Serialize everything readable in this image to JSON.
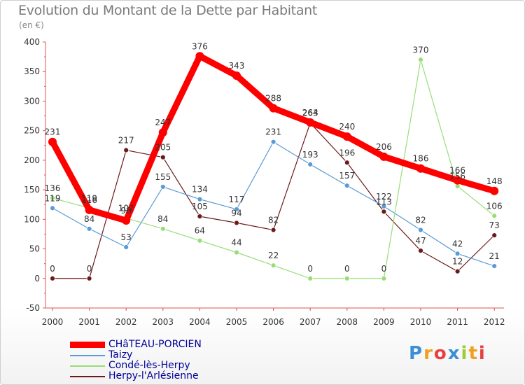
{
  "chart_data": {
    "type": "line",
    "title": "Evolution du Montant de la Dette par Habitant",
    "subtitle": "(en €)",
    "x": [
      "2000",
      "2001",
      "2002",
      "2003",
      "2004",
      "2005",
      "2006",
      "2007",
      "2008",
      "2009",
      "2010",
      "2011",
      "2012"
    ],
    "ylim": [
      -50,
      400
    ],
    "yticks": [
      -50,
      0,
      50,
      100,
      150,
      200,
      250,
      300,
      350,
      400
    ],
    "grid": false,
    "legend_position": "bottom-left",
    "series": [
      {
        "name": "Herpy-l'Arlésienne",
        "color": "#6b1a1a",
        "width": 1.2,
        "values": [
          0,
          0,
          217,
          205,
          105,
          94,
          82,
          263,
          196,
          113,
          47,
          12,
          73
        ]
      },
      {
        "name": "Taizy",
        "color": "#5b9bd5",
        "width": 1.2,
        "values": [
          119,
          84,
          53,
          155,
          134,
          117,
          231,
          193,
          157,
          122,
          82,
          42,
          21
        ]
      },
      {
        "name": "Condé-lès-Herpy",
        "color": "#99dd77",
        "width": 1.2,
        "values": [
          136,
          119,
          102,
          84,
          64,
          44,
          22,
          0,
          0,
          0,
          370,
          156,
          106
        ]
      },
      {
        "name": "CHâTEAU-PORCIEN",
        "color": "#ff0000",
        "width": 9,
        "values": [
          231,
          116,
          98,
          247,
          376,
          343,
          288,
          264,
          240,
          206,
          186,
          166,
          148
        ]
      }
    ]
  },
  "legend": {
    "items": [
      {
        "label": "CHâTEAU-PORCIEN",
        "color": "#ff0000"
      },
      {
        "label": "Taizy",
        "color": "#5b9bd5"
      },
      {
        "label": "Condé-lès-Herpy",
        "color": "#99dd77"
      },
      {
        "label": "Herpy-l'Arlésienne",
        "color": "#6b1a1a"
      }
    ]
  },
  "brand": {
    "letters": [
      "P",
      "r",
      "o",
      "x",
      "i",
      "t",
      "i"
    ],
    "colors": [
      "#3b8fd6",
      "#f0a020",
      "#e84040",
      "#3b8fd6",
      "#9acd32",
      "#f0a020",
      "#e84040"
    ]
  }
}
